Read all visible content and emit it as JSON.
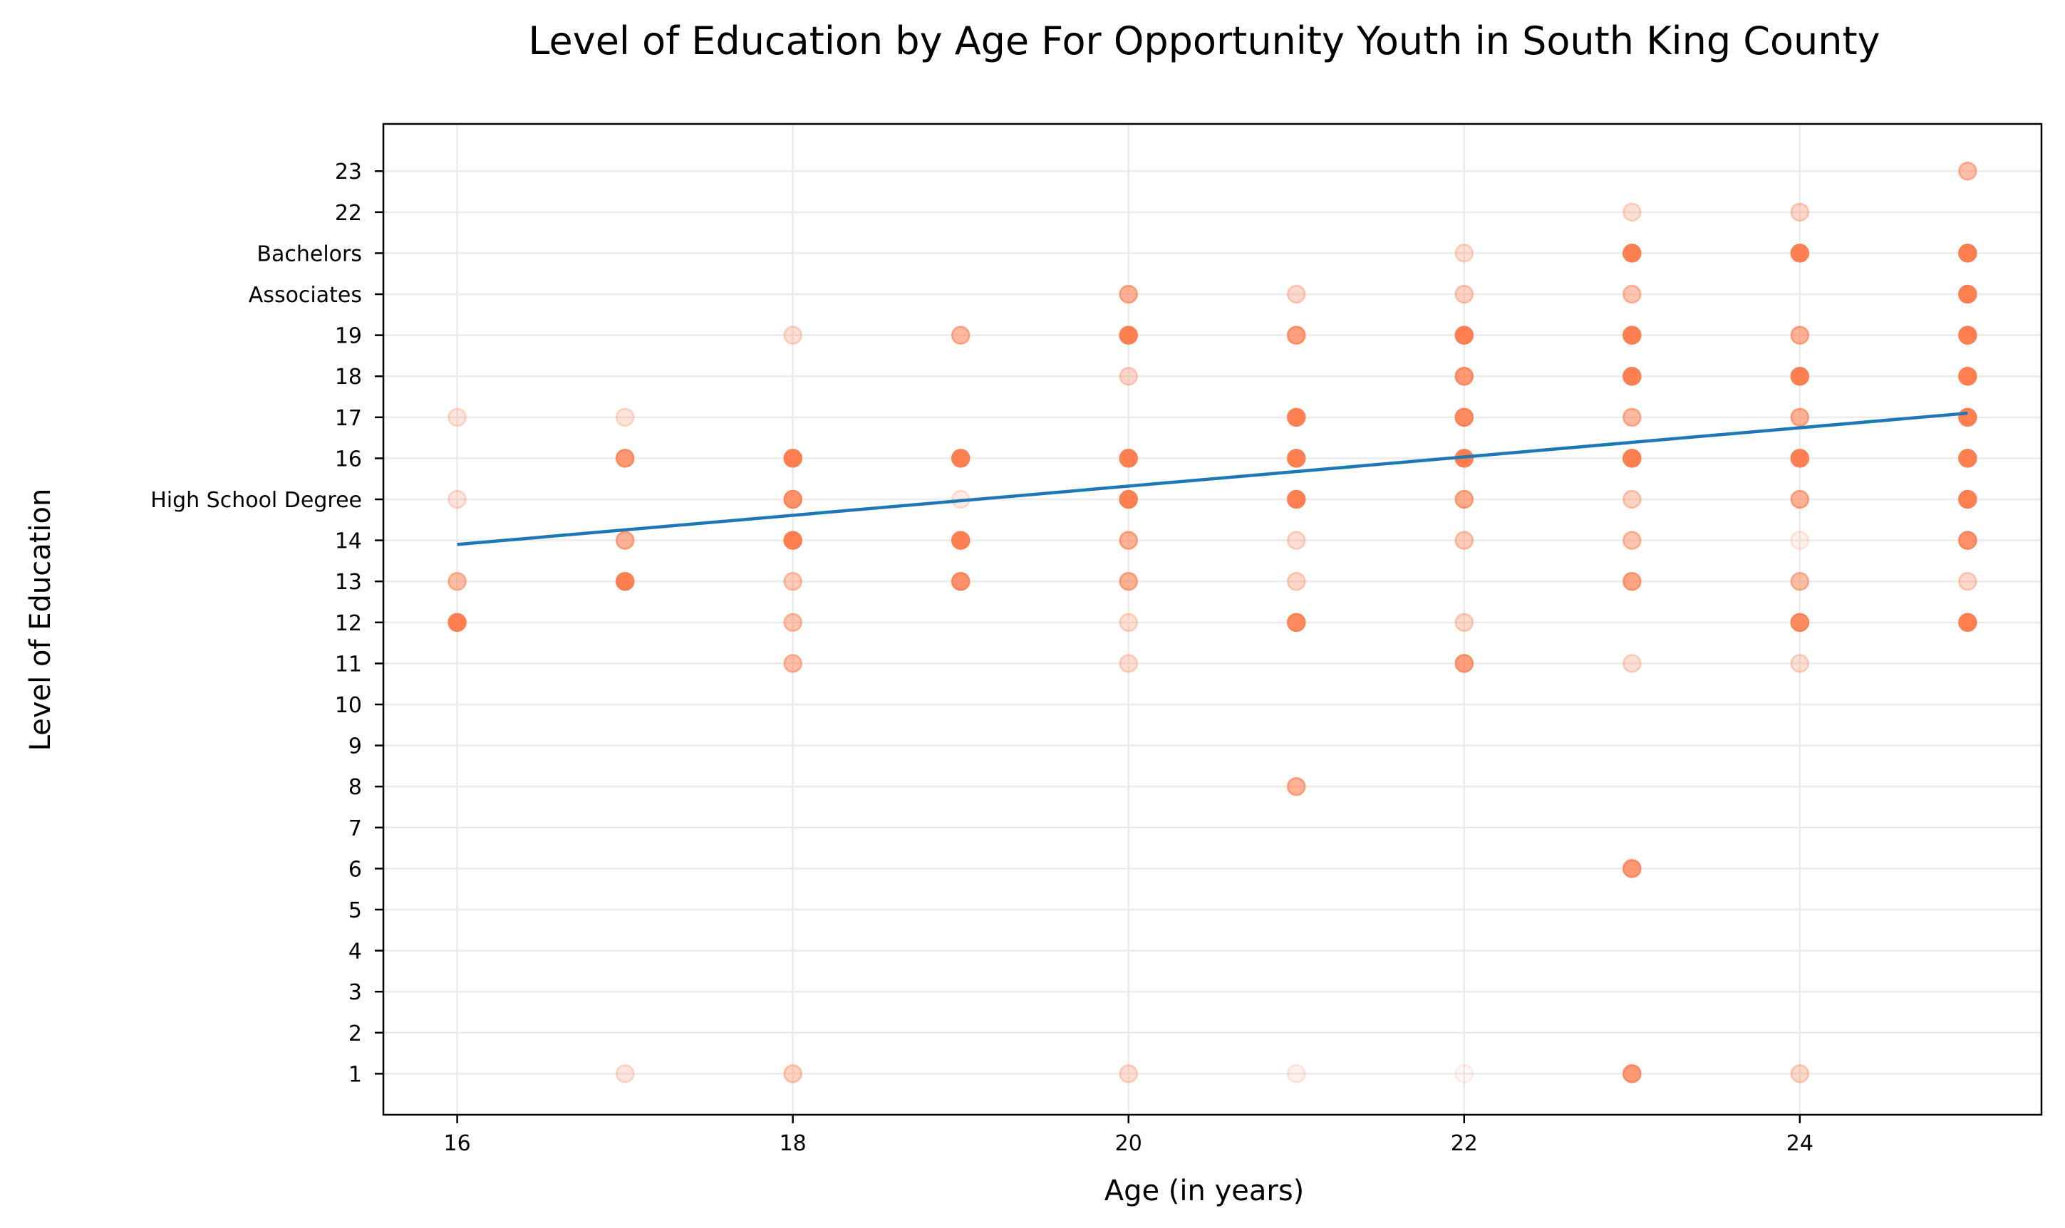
{
  "chart_data": {
    "type": "scatter",
    "title": "Level of Education by Age For Opportunity Youth in South King County",
    "xlabel": "Age (in years)",
    "ylabel": "Level of Education",
    "xlim": [
      15.56,
      25.44
    ],
    "ylim": [
      0,
      24.15
    ],
    "xticks": [
      16,
      18,
      20,
      22,
      24
    ],
    "yticks": [
      {
        "value": 1,
        "label": "1"
      },
      {
        "value": 2,
        "label": "2"
      },
      {
        "value": 3,
        "label": "3"
      },
      {
        "value": 4,
        "label": "4"
      },
      {
        "value": 5,
        "label": "5"
      },
      {
        "value": 6,
        "label": "6"
      },
      {
        "value": 7,
        "label": "7"
      },
      {
        "value": 8,
        "label": "8"
      },
      {
        "value": 9,
        "label": "9"
      },
      {
        "value": 10,
        "label": "10"
      },
      {
        "value": 11,
        "label": "11"
      },
      {
        "value": 12,
        "label": "12"
      },
      {
        "value": 13,
        "label": "13"
      },
      {
        "value": 14,
        "label": "14"
      },
      {
        "value": 15,
        "label": "High School Degree"
      },
      {
        "value": 16,
        "label": "16"
      },
      {
        "value": 17,
        "label": "17"
      },
      {
        "value": 18,
        "label": "18"
      },
      {
        "value": 19,
        "label": "19"
      },
      {
        "value": 20,
        "label": "Associates"
      },
      {
        "value": 21,
        "label": "Bachelors"
      },
      {
        "value": 22,
        "label": "22"
      },
      {
        "value": 23,
        "label": "23"
      }
    ],
    "grid": true,
    "point_color": "#ff7f50",
    "line_color": "#1f77b4",
    "points": [
      {
        "x": 16,
        "y": 17,
        "alpha": 0.2
      },
      {
        "x": 16,
        "y": 15,
        "alpha": 0.2
      },
      {
        "x": 16,
        "y": 13,
        "alpha": 0.5
      },
      {
        "x": 16,
        "y": 12,
        "alpha": 1.0
      },
      {
        "x": 17,
        "y": 17,
        "alpha": 0.2
      },
      {
        "x": 17,
        "y": 16,
        "alpha": 0.8
      },
      {
        "x": 17,
        "y": 14,
        "alpha": 0.6
      },
      {
        "x": 17,
        "y": 13,
        "alpha": 1.0
      },
      {
        "x": 17,
        "y": 1,
        "alpha": 0.2
      },
      {
        "x": 18,
        "y": 19,
        "alpha": 0.25
      },
      {
        "x": 18,
        "y": 16,
        "alpha": 1.0
      },
      {
        "x": 18,
        "y": 15,
        "alpha": 0.85
      },
      {
        "x": 18,
        "y": 14,
        "alpha": 1.0
      },
      {
        "x": 18,
        "y": 13,
        "alpha": 0.4
      },
      {
        "x": 18,
        "y": 12,
        "alpha": 0.45
      },
      {
        "x": 18,
        "y": 11,
        "alpha": 0.5
      },
      {
        "x": 18,
        "y": 1,
        "alpha": 0.35
      },
      {
        "x": 19,
        "y": 19,
        "alpha": 0.55
      },
      {
        "x": 19,
        "y": 16,
        "alpha": 1.0
      },
      {
        "x": 19,
        "y": 15,
        "alpha": 0.15
      },
      {
        "x": 19,
        "y": 14,
        "alpha": 1.0
      },
      {
        "x": 19,
        "y": 13,
        "alpha": 0.85
      },
      {
        "x": 20,
        "y": 20,
        "alpha": 0.6
      },
      {
        "x": 20,
        "y": 19,
        "alpha": 1.0
      },
      {
        "x": 20,
        "y": 18,
        "alpha": 0.3
      },
      {
        "x": 20,
        "y": 16,
        "alpha": 1.0
      },
      {
        "x": 20,
        "y": 15,
        "alpha": 1.0
      },
      {
        "x": 20,
        "y": 14,
        "alpha": 0.6
      },
      {
        "x": 20,
        "y": 13,
        "alpha": 0.6
      },
      {
        "x": 20,
        "y": 12,
        "alpha": 0.25
      },
      {
        "x": 20,
        "y": 11,
        "alpha": 0.25
      },
      {
        "x": 20,
        "y": 1,
        "alpha": 0.25
      },
      {
        "x": 21,
        "y": 20,
        "alpha": 0.3
      },
      {
        "x": 21,
        "y": 19,
        "alpha": 0.75
      },
      {
        "x": 21,
        "y": 17,
        "alpha": 1.0
      },
      {
        "x": 21,
        "y": 16,
        "alpha": 1.0
      },
      {
        "x": 21,
        "y": 15,
        "alpha": 1.0
      },
      {
        "x": 21,
        "y": 14,
        "alpha": 0.25
      },
      {
        "x": 21,
        "y": 13,
        "alpha": 0.3
      },
      {
        "x": 21,
        "y": 12,
        "alpha": 0.9
      },
      {
        "x": 21,
        "y": 8,
        "alpha": 0.6
      },
      {
        "x": 21,
        "y": 1,
        "alpha": 0.1
      },
      {
        "x": 22,
        "y": 21,
        "alpha": 0.25
      },
      {
        "x": 22,
        "y": 20,
        "alpha": 0.35
      },
      {
        "x": 22,
        "y": 19,
        "alpha": 1.0
      },
      {
        "x": 22,
        "y": 18,
        "alpha": 0.8
      },
      {
        "x": 22,
        "y": 17,
        "alpha": 0.9
      },
      {
        "x": 22,
        "y": 16,
        "alpha": 1.0
      },
      {
        "x": 22,
        "y": 15,
        "alpha": 0.65
      },
      {
        "x": 22,
        "y": 14,
        "alpha": 0.4
      },
      {
        "x": 22,
        "y": 12,
        "alpha": 0.3
      },
      {
        "x": 22,
        "y": 11,
        "alpha": 0.75
      },
      {
        "x": 22,
        "y": 1,
        "alpha": 0.05
      },
      {
        "x": 23,
        "y": 22,
        "alpha": 0.25
      },
      {
        "x": 23,
        "y": 21,
        "alpha": 1.0
      },
      {
        "x": 23,
        "y": 20,
        "alpha": 0.45
      },
      {
        "x": 23,
        "y": 19,
        "alpha": 1.0
      },
      {
        "x": 23,
        "y": 18,
        "alpha": 1.0
      },
      {
        "x": 23,
        "y": 17,
        "alpha": 0.55
      },
      {
        "x": 23,
        "y": 16,
        "alpha": 1.0
      },
      {
        "x": 23,
        "y": 15,
        "alpha": 0.35
      },
      {
        "x": 23,
        "y": 14,
        "alpha": 0.45
      },
      {
        "x": 23,
        "y": 13,
        "alpha": 0.7
      },
      {
        "x": 23,
        "y": 11,
        "alpha": 0.25
      },
      {
        "x": 23,
        "y": 6,
        "alpha": 0.8
      },
      {
        "x": 23,
        "y": 1,
        "alpha": 0.8
      },
      {
        "x": 24,
        "y": 22,
        "alpha": 0.3
      },
      {
        "x": 24,
        "y": 21,
        "alpha": 1.0
      },
      {
        "x": 24,
        "y": 19,
        "alpha": 0.6
      },
      {
        "x": 24,
        "y": 18,
        "alpha": 1.0
      },
      {
        "x": 24,
        "y": 17,
        "alpha": 0.6
      },
      {
        "x": 24,
        "y": 16,
        "alpha": 1.0
      },
      {
        "x": 24,
        "y": 15,
        "alpha": 0.6
      },
      {
        "x": 24,
        "y": 14,
        "alpha": 0.1
      },
      {
        "x": 24,
        "y": 13,
        "alpha": 0.5
      },
      {
        "x": 24,
        "y": 12,
        "alpha": 0.9
      },
      {
        "x": 24,
        "y": 11,
        "alpha": 0.25
      },
      {
        "x": 24,
        "y": 1,
        "alpha": 0.3
      },
      {
        "x": 25,
        "y": 23,
        "alpha": 0.5
      },
      {
        "x": 25,
        "y": 21,
        "alpha": 1.0
      },
      {
        "x": 25,
        "y": 20,
        "alpha": 1.0
      },
      {
        "x": 25,
        "y": 19,
        "alpha": 1.0
      },
      {
        "x": 25,
        "y": 18,
        "alpha": 1.0
      },
      {
        "x": 25,
        "y": 17,
        "alpha": 1.0
      },
      {
        "x": 25,
        "y": 16,
        "alpha": 1.0
      },
      {
        "x": 25,
        "y": 15,
        "alpha": 1.0
      },
      {
        "x": 25,
        "y": 14,
        "alpha": 0.85
      },
      {
        "x": 25,
        "y": 13,
        "alpha": 0.3
      },
      {
        "x": 25,
        "y": 12,
        "alpha": 1.0
      }
    ],
    "trend_line": {
      "x": [
        16,
        25
      ],
      "y": [
        13.9,
        17.1
      ]
    }
  }
}
